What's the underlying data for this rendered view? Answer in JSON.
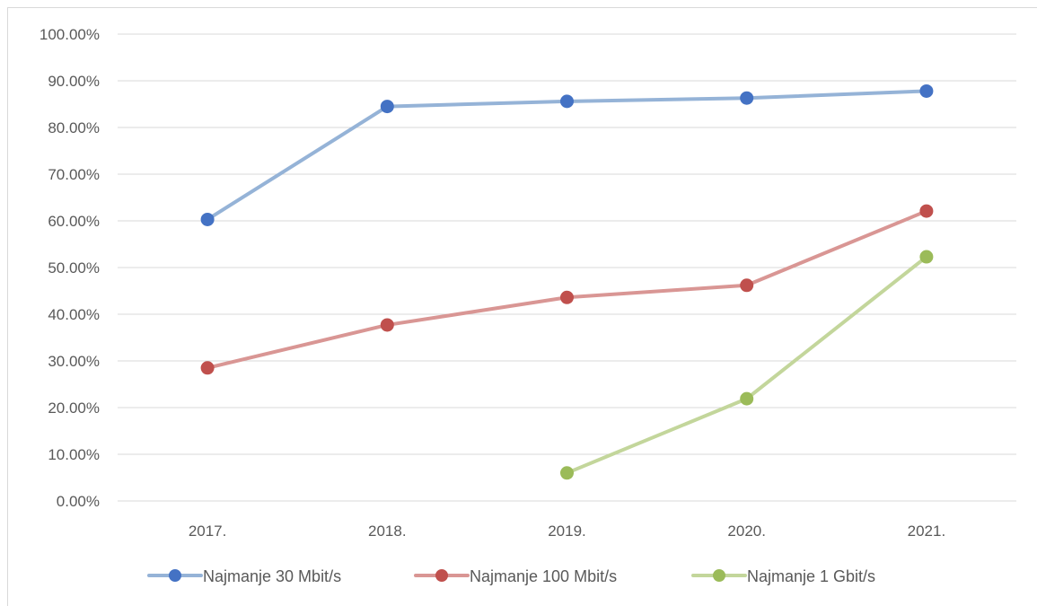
{
  "chart_data": {
    "type": "line",
    "categories": [
      "2017.",
      "2018.",
      "2019.",
      "2020.",
      "2021."
    ],
    "y_ticks": [
      "0.00%",
      "10.00%",
      "20.00%",
      "30.00%",
      "40.00%",
      "50.00%",
      "60.00%",
      "70.00%",
      "80.00%",
      "90.00%",
      "100.00%"
    ],
    "ylim": [
      0,
      100
    ],
    "grid": true,
    "legend_position": "bottom",
    "series": [
      {
        "name": "Najmanje 30 Mbit/s",
        "color": "#4472c4",
        "line_color": "#95b3d7",
        "values": [
          60.3,
          84.5,
          85.6,
          86.3,
          87.8
        ]
      },
      {
        "name": "Najmanje 100 Mbit/s",
        "color": "#c0504d",
        "line_color": "#d99694",
        "values": [
          28.5,
          37.7,
          43.6,
          46.2,
          62.1
        ]
      },
      {
        "name": "Najmanje 1 Gbit/s",
        "color": "#9bbb59",
        "line_color": "#c3d69b",
        "values": [
          null,
          null,
          6.0,
          21.9,
          52.3
        ]
      }
    ]
  }
}
